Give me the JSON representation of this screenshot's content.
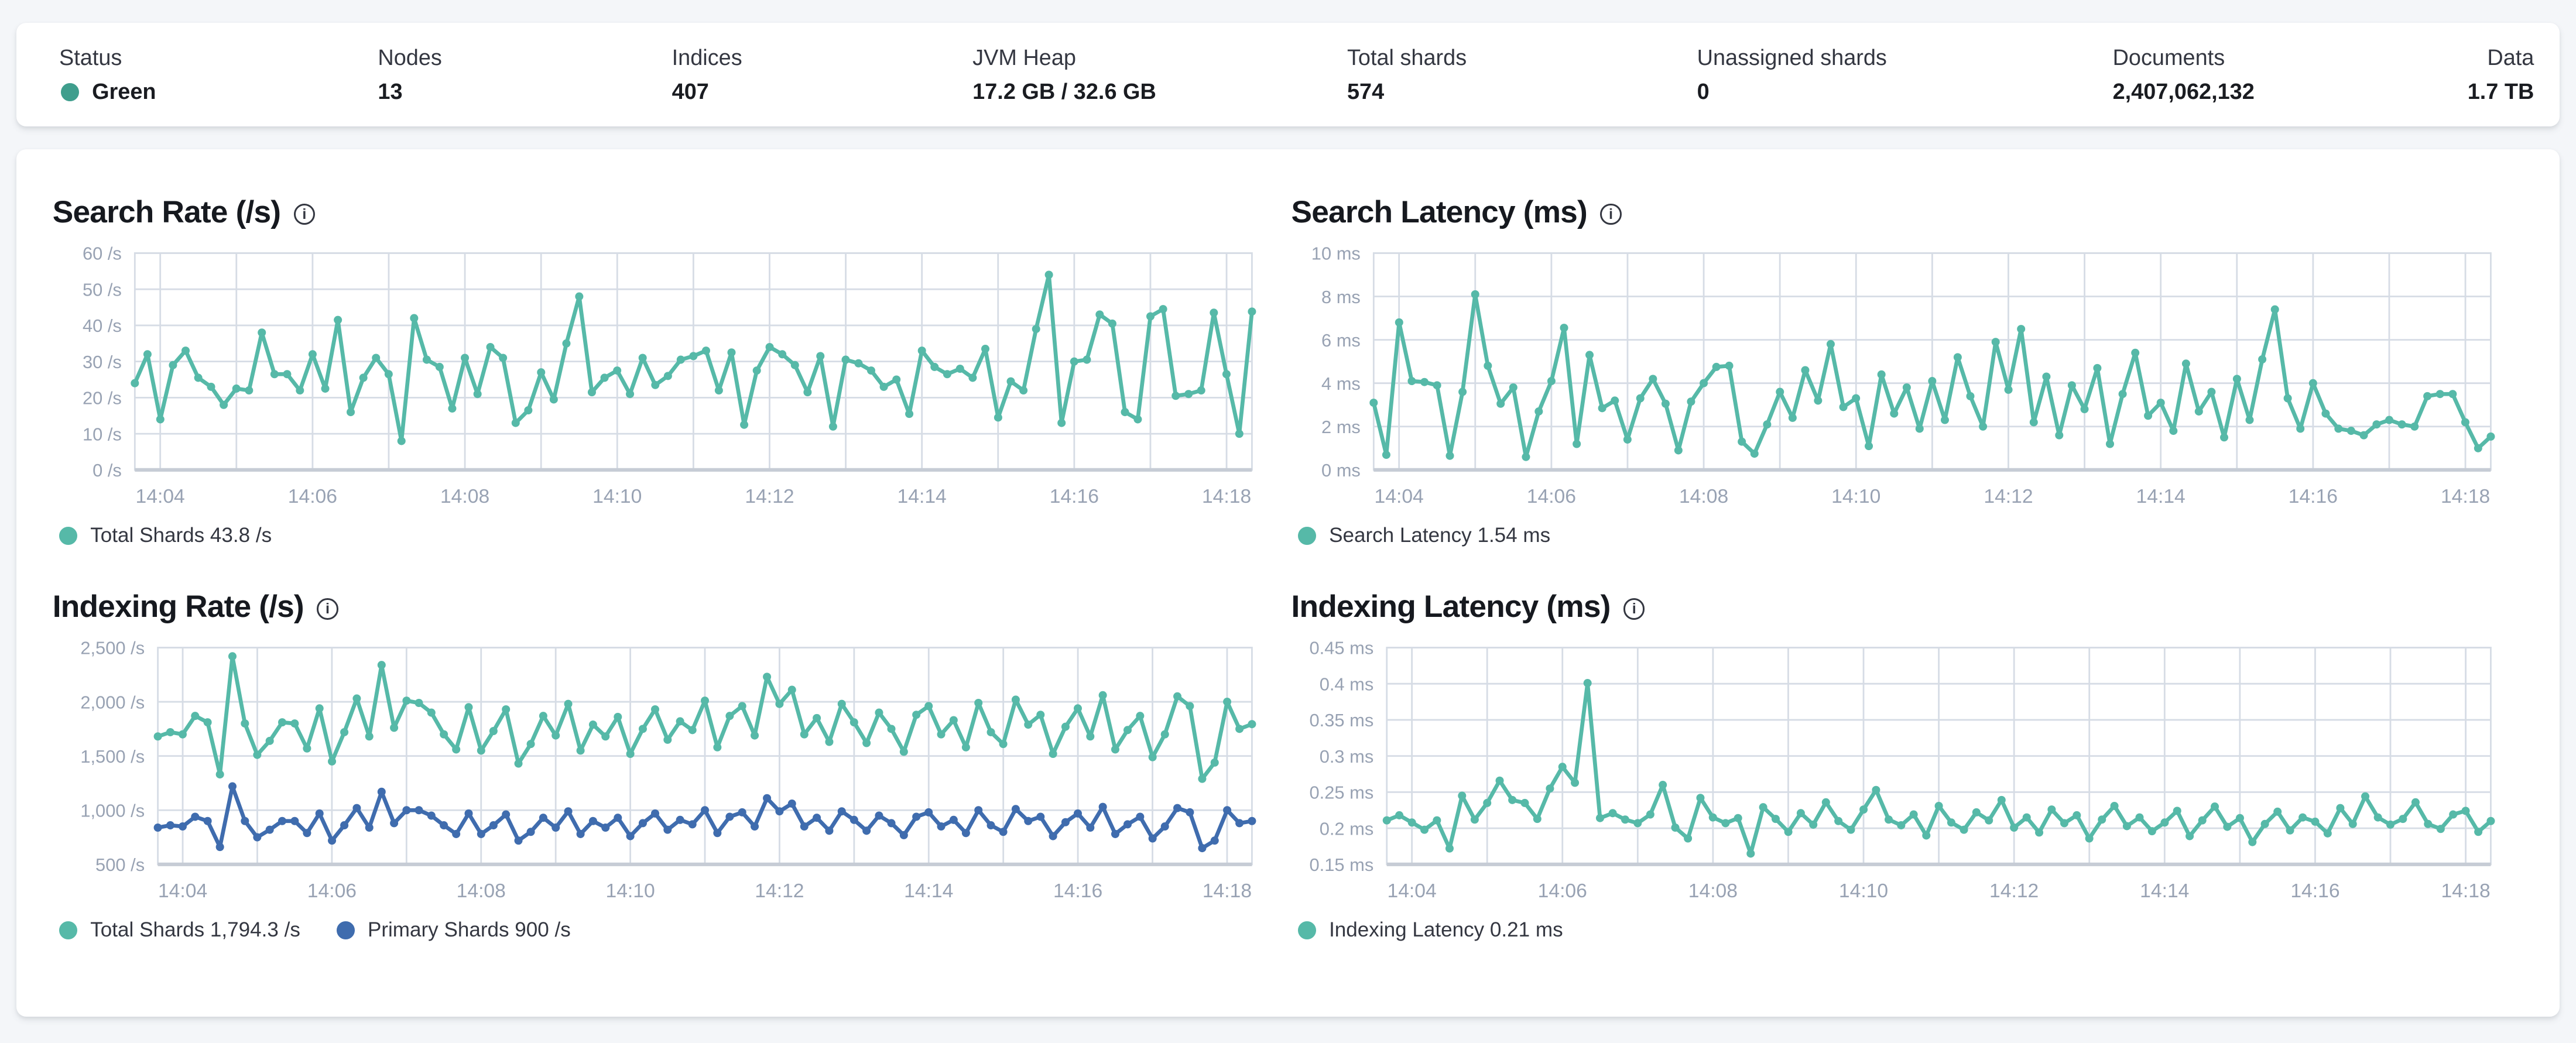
{
  "colors": {
    "status_green": "#3f9e8d",
    "teal": "#56b9a8",
    "blue": "#3f6cae",
    "grid": "#d6dce5",
    "axis_line": "#c6ccd5",
    "axis_text": "#98a2b3"
  },
  "summary": {
    "items": [
      {
        "label": "Status",
        "value": "Green",
        "dot": true
      },
      {
        "label": "Nodes",
        "value": "13"
      },
      {
        "label": "Indices",
        "value": "407"
      },
      {
        "label": "JVM Heap",
        "value": "17.2 GB / 32.6 GB"
      },
      {
        "label": "Total shards",
        "value": "574"
      },
      {
        "label": "Unassigned shards",
        "value": "0"
      },
      {
        "label": "Documents",
        "value": "2,407,062,132"
      },
      {
        "label": "Data",
        "value": "1.7 TB"
      }
    ]
  },
  "chart_data": [
    {
      "type": "line",
      "title": "Search Rate (/s)",
      "ylabel": "/s",
      "ylim": [
        0,
        60
      ],
      "yticks": [
        {
          "v": 0,
          "label": "0 /s"
        },
        {
          "v": 10,
          "label": "10 /s"
        },
        {
          "v": 20,
          "label": "20 /s"
        },
        {
          "v": 30,
          "label": "30 /s"
        },
        {
          "v": 40,
          "label": "40 /s"
        },
        {
          "v": 50,
          "label": "50 /s"
        },
        {
          "v": 60,
          "label": "60 /s"
        }
      ],
      "x_start": "14:03:40",
      "x_step_seconds": 10,
      "x_tick_labels": [
        "14:04",
        "14:06",
        "14:08",
        "14:10",
        "14:12",
        "14:14",
        "14:16",
        "14:18"
      ],
      "x_first_tick_index": 2,
      "x_grid_step": 6,
      "x_label_step": 12,
      "grid": true,
      "legend_position": "bottom",
      "margin_left": 50,
      "series": [
        {
          "name": "Total Shards",
          "color": "#56b9a8",
          "legend": "Total Shards 43.8 /s",
          "values": [
            24,
            32,
            14,
            29,
            33,
            25.5,
            23,
            18,
            22.5,
            22,
            38,
            26.5,
            26.5,
            22,
            32,
            22.5,
            41.5,
            16,
            25.5,
            31,
            26.5,
            8,
            42,
            30.5,
            28.5,
            17,
            31,
            21,
            34,
            31,
            13,
            16.5,
            27,
            19.5,
            35,
            48,
            21.5,
            25.5,
            27.5,
            21,
            31,
            23.5,
            26,
            30.5,
            31.5,
            33,
            22,
            32.5,
            12.5,
            27.5,
            34,
            32,
            29,
            21.5,
            31.5,
            12,
            30.5,
            29.5,
            27.5,
            23,
            25,
            15.5,
            33,
            28.5,
            26.5,
            28,
            25.5,
            33.5,
            14.5,
            24.5,
            22,
            39,
            54,
            13,
            30,
            30.5,
            43,
            40.5,
            16,
            14,
            42.5,
            44.5,
            20.5,
            21,
            22,
            43.5,
            26.5,
            10,
            43.8
          ]
        }
      ]
    },
    {
      "type": "line",
      "title": "Search Latency (ms)",
      "ylabel": "ms",
      "ylim": [
        0,
        10
      ],
      "yticks": [
        {
          "v": 0,
          "label": "0 ms"
        },
        {
          "v": 2,
          "label": "2 ms"
        },
        {
          "v": 4,
          "label": "4 ms"
        },
        {
          "v": 6,
          "label": "6 ms"
        },
        {
          "v": 8,
          "label": "8 ms"
        },
        {
          "v": 10,
          "label": "10 ms"
        }
      ],
      "x_start": "14:03:40",
      "x_step_seconds": 10,
      "x_tick_labels": [
        "14:04",
        "14:06",
        "14:08",
        "14:10",
        "14:12",
        "14:14",
        "14:16",
        "14:18"
      ],
      "x_first_tick_index": 2,
      "x_grid_step": 6,
      "x_label_step": 12,
      "grid": true,
      "legend_position": "bottom",
      "margin_left": 50,
      "series": [
        {
          "name": "Search Latency",
          "color": "#56b9a8",
          "legend": "Search Latency 1.54 ms",
          "values": [
            3.1,
            0.7,
            6.8,
            4.1,
            4.05,
            3.9,
            0.65,
            3.6,
            8.1,
            4.8,
            3.05,
            3.8,
            0.6,
            2.7,
            4.1,
            6.55,
            1.2,
            5.3,
            2.85,
            3.2,
            1.4,
            3.3,
            4.2,
            3.05,
            0.9,
            3.15,
            4.0,
            4.75,
            4.8,
            1.3,
            0.75,
            2.1,
            3.6,
            2.4,
            4.6,
            3.2,
            5.8,
            2.9,
            3.3,
            1.1,
            4.4,
            2.6,
            3.8,
            1.9,
            4.1,
            2.3,
            5.2,
            3.4,
            2.0,
            5.9,
            3.7,
            6.5,
            2.2,
            4.3,
            1.6,
            3.9,
            2.8,
            4.7,
            1.2,
            3.5,
            5.4,
            2.5,
            3.1,
            1.8,
            4.9,
            2.7,
            3.6,
            1.5,
            4.2,
            2.3,
            5.1,
            7.4,
            3.3,
            1.9,
            4.0,
            2.6,
            1.9,
            1.8,
            1.6,
            2.1,
            2.3,
            2.1,
            2.0,
            3.4,
            3.5,
            3.5,
            2.2,
            1.0,
            1.54
          ]
        }
      ]
    },
    {
      "type": "line",
      "title": "Indexing Rate (/s)",
      "ylabel": "/s",
      "ylim": [
        500,
        2500
      ],
      "yticks": [
        {
          "v": 500,
          "label": "500 /s"
        },
        {
          "v": 1000,
          "label": "1,000 /s"
        },
        {
          "v": 1500,
          "label": "1,500 /s"
        },
        {
          "v": 2000,
          "label": "2,000 /s"
        },
        {
          "v": 2500,
          "label": "2,500 /s"
        }
      ],
      "x_start": "14:03:40",
      "x_step_seconds": 10,
      "x_tick_labels": [
        "14:04",
        "14:06",
        "14:08",
        "14:10",
        "14:12",
        "14:14",
        "14:16",
        "14:18"
      ],
      "x_first_tick_index": 2,
      "x_grid_step": 6,
      "x_label_step": 12,
      "grid": true,
      "legend_position": "bottom",
      "margin_left": 64,
      "series": [
        {
          "name": "Total Shards",
          "color": "#56b9a8",
          "legend": "Total Shards 1,794.3 /s",
          "values": [
            1680,
            1720,
            1700,
            1870,
            1810,
            1330,
            2420,
            1800,
            1510,
            1640,
            1810,
            1800,
            1570,
            1940,
            1450,
            1720,
            2030,
            1680,
            2340,
            1760,
            2010,
            1990,
            1900,
            1700,
            1560,
            1950,
            1550,
            1730,
            1930,
            1430,
            1610,
            1870,
            1690,
            1980,
            1550,
            1790,
            1680,
            1860,
            1520,
            1750,
            1930,
            1650,
            1820,
            1740,
            2010,
            1580,
            1870,
            1960,
            1690,
            2230,
            1980,
            2110,
            1700,
            1850,
            1630,
            1980,
            1810,
            1620,
            1900,
            1750,
            1540,
            1880,
            1960,
            1700,
            1830,
            1580,
            1990,
            1720,
            1610,
            2020,
            1790,
            1880,
            1520,
            1770,
            1940,
            1680,
            2060,
            1560,
            1740,
            1870,
            1490,
            1700,
            2050,
            1960,
            1290,
            1440,
            2000,
            1750,
            1794.3
          ]
        },
        {
          "name": "Primary Shards",
          "color": "#3f6cae",
          "legend": "Primary Shards 900 /s",
          "values": [
            840,
            860,
            850,
            940,
            900,
            660,
            1220,
            900,
            750,
            820,
            900,
            900,
            790,
            970,
            720,
            860,
            1020,
            840,
            1170,
            880,
            1000,
            1000,
            950,
            860,
            780,
            970,
            780,
            860,
            960,
            720,
            800,
            930,
            840,
            990,
            780,
            900,
            840,
            930,
            760,
            880,
            970,
            820,
            910,
            870,
            1000,
            790,
            940,
            980,
            850,
            1110,
            990,
            1060,
            850,
            930,
            810,
            990,
            910,
            810,
            950,
            880,
            770,
            940,
            980,
            850,
            910,
            790,
            1000,
            860,
            800,
            1010,
            900,
            940,
            760,
            890,
            970,
            840,
            1030,
            780,
            870,
            940,
            740,
            850,
            1020,
            980,
            650,
            720,
            1000,
            880,
            900
          ]
        }
      ]
    },
    {
      "type": "line",
      "title": "Indexing Latency (ms)",
      "ylabel": "ms",
      "ylim": [
        0.15,
        0.45
      ],
      "yticks": [
        {
          "v": 0.15,
          "label": "0.15 ms"
        },
        {
          "v": 0.2,
          "label": "0.2 ms"
        },
        {
          "v": 0.25,
          "label": "0.25 ms"
        },
        {
          "v": 0.3,
          "label": "0.3 ms"
        },
        {
          "v": 0.35,
          "label": "0.35 ms"
        },
        {
          "v": 0.4,
          "label": "0.4 ms"
        },
        {
          "v": 0.45,
          "label": "0.45 ms"
        }
      ],
      "x_start": "14:03:40",
      "x_step_seconds": 10,
      "x_tick_labels": [
        "14:04",
        "14:06",
        "14:08",
        "14:10",
        "14:12",
        "14:14",
        "14:16",
        "14:18"
      ],
      "x_first_tick_index": 2,
      "x_grid_step": 6,
      "x_label_step": 12,
      "grid": true,
      "legend_position": "bottom",
      "margin_left": 58,
      "series": [
        {
          "name": "Indexing Latency",
          "color": "#56b9a8",
          "legend": "Indexing Latency 0.21 ms",
          "values": [
            0.211,
            0.218,
            0.208,
            0.198,
            0.211,
            0.172,
            0.245,
            0.212,
            0.235,
            0.266,
            0.239,
            0.235,
            0.213,
            0.255,
            0.285,
            0.263,
            0.401,
            0.214,
            0.221,
            0.212,
            0.207,
            0.219,
            0.26,
            0.201,
            0.186,
            0.242,
            0.215,
            0.207,
            0.214,
            0.165,
            0.229,
            0.213,
            0.195,
            0.221,
            0.205,
            0.236,
            0.21,
            0.198,
            0.226,
            0.253,
            0.212,
            0.204,
            0.219,
            0.19,
            0.231,
            0.208,
            0.198,
            0.222,
            0.211,
            0.239,
            0.201,
            0.215,
            0.194,
            0.226,
            0.207,
            0.218,
            0.186,
            0.212,
            0.231,
            0.203,
            0.215,
            0.196,
            0.208,
            0.224,
            0.189,
            0.211,
            0.23,
            0.202,
            0.214,
            0.181,
            0.206,
            0.223,
            0.197,
            0.215,
            0.209,
            0.193,
            0.228,
            0.206,
            0.244,
            0.215,
            0.205,
            0.213,
            0.236,
            0.206,
            0.199,
            0.219,
            0.224,
            0.195,
            0.21
          ]
        }
      ]
    }
  ]
}
